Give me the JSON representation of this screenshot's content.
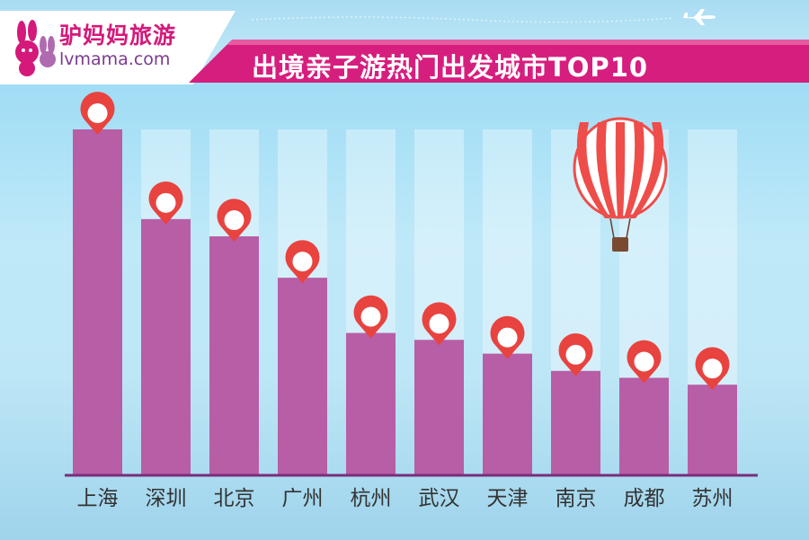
{
  "brand": {
    "name_cn": "驴妈妈旅游",
    "domain": "lvmama.com"
  },
  "title": "出境亲子游热门出发城市TOP10",
  "colors": {
    "bar": "#b85ea6",
    "pin": "#e8433f",
    "accent": "#d61e7e"
  },
  "chart_data": {
    "type": "bar",
    "title": "出境亲子游热门出发城市TOP10",
    "categories": [
      "上海",
      "深圳",
      "北京",
      "广州",
      "杭州",
      "武汉",
      "天津",
      "南京",
      "成都",
      "苏州"
    ],
    "values": [
      100,
      74,
      69,
      57,
      41,
      39,
      35,
      30,
      28,
      26
    ],
    "value_scale": "relative (no axis printed)",
    "ylim": [
      0,
      100
    ],
    "grid": false,
    "legend": "none",
    "markers": "location pin above each bar"
  }
}
